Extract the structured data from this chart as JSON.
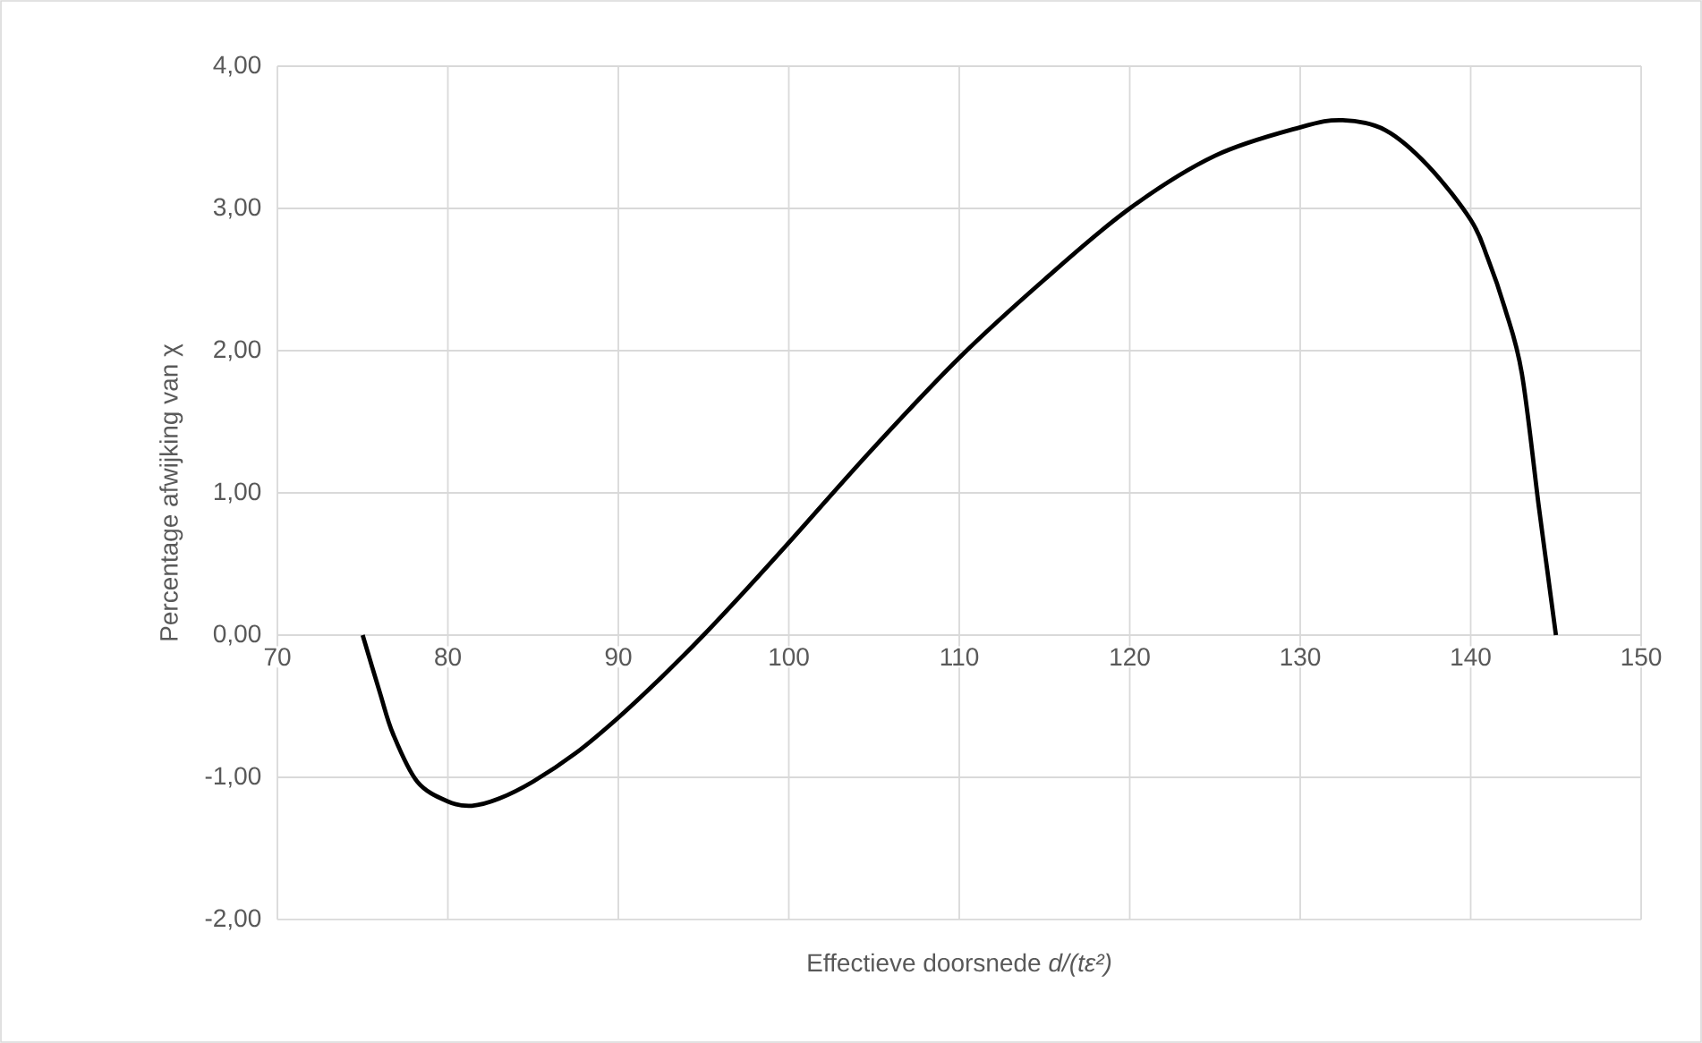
{
  "chart_data": {
    "type": "line",
    "xlabel": "Effectieve doorsnede *d/(tε²)*",
    "ylabel": "Percentage afwijking van χ",
    "x": [
      75,
      76,
      76.8,
      78.2,
      80,
      81.4,
      83,
      85,
      87.5,
      90,
      92.5,
      95,
      97.5,
      100,
      105,
      110,
      115,
      120,
      125,
      130,
      132.5,
      135,
      137.5,
      140,
      141,
      142,
      143,
      144,
      144.5,
      145
    ],
    "series": [
      {
        "color": "#000000",
        "values": [
          0,
          -0.4,
          -0.7,
          -1.03,
          -1.17,
          -1.2,
          -1.15,
          -1.03,
          -0.83,
          -0.58,
          -0.3,
          0,
          0.32,
          0.65,
          1.32,
          1.95,
          2.5,
          3.0,
          3.37,
          3.57,
          3.62,
          3.55,
          3.3,
          2.92,
          2.65,
          2.3,
          1.84,
          0.9,
          0.45,
          0
        ]
      }
    ],
    "xlim": [
      70,
      150
    ],
    "ylim": [
      -2,
      4
    ],
    "xticks": [
      70,
      80,
      90,
      100,
      110,
      120,
      130,
      140,
      150
    ],
    "yticks": [
      {
        "value": -2,
        "label": "-2,00"
      },
      {
        "value": -1,
        "label": "-1,00"
      },
      {
        "value": 0,
        "label": "0,00"
      },
      {
        "value": 1,
        "label": "1,00"
      },
      {
        "value": 2,
        "label": "2,00"
      },
      {
        "value": 3,
        "label": "3,00"
      },
      {
        "value": 4,
        "label": "4,00"
      }
    ],
    "grid": true,
    "marker": "none",
    "line_style": "solid"
  }
}
